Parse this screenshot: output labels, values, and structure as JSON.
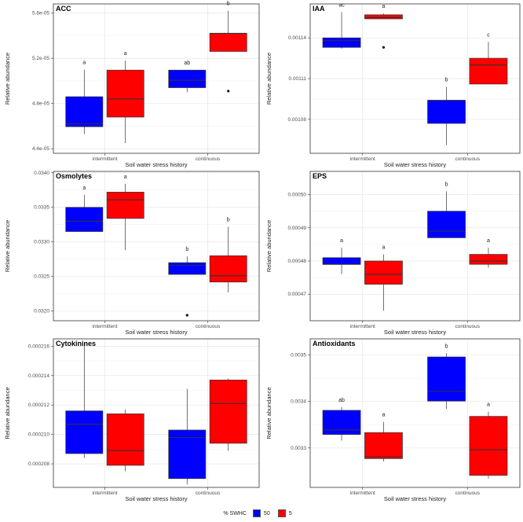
{
  "legend": {
    "title": "% SWHC",
    "items": [
      {
        "label": "50",
        "color": "#0000FF"
      },
      {
        "label": "5",
        "color": "#FF0000"
      }
    ]
  },
  "chart_data": [
    {
      "type": "boxplot",
      "title": "ACC",
      "categories": [
        "intermittent",
        "continuous"
      ],
      "xlabel": "Soil water stress history",
      "ylabel": "Relative abundance",
      "ylim": [
        4.36e-05,
        5.68e-05
      ],
      "ticks": [
        4.4e-05,
        4.8e-05,
        5.2e-05,
        5.6e-05
      ],
      "tick_labels": [
        "4.4e-05",
        "4.8e-05",
        "5.2e-05",
        "5.6e-05"
      ],
      "series": [
        {
          "name": "50",
          "color": "#0000FF",
          "boxes": [
            {
              "lo": 4.53e-05,
              "q1": 4.595e-05,
              "med": 4.62e-05,
              "q3": 4.86e-05,
              "hi": 5.1e-05,
              "outliers": [],
              "letter": "a"
            },
            {
              "lo": 4.9e-05,
              "q1": 4.94e-05,
              "med": 5.005e-05,
              "q3": 5.095e-05,
              "hi": 5.095e-05,
              "outliers": [],
              "letter": "ab"
            }
          ]
        },
        {
          "name": "5",
          "color": "#FF0000",
          "boxes": [
            {
              "lo": 4.45e-05,
              "q1": 4.68e-05,
              "med": 4.84e-05,
              "q3": 5.095e-05,
              "hi": 5.18e-05,
              "outliers": [],
              "letter": "a"
            },
            {
              "lo": 5.26e-05,
              "q1": 5.26e-05,
              "med": 5.42e-05,
              "q3": 5.42e-05,
              "hi": 5.62e-05,
              "outliers": [
                4.91e-05
              ],
              "letter": "b"
            }
          ]
        }
      ]
    },
    {
      "type": "boxplot",
      "title": "IAA",
      "categories": [
        "intermittent",
        "continuous"
      ],
      "xlabel": "Soil water stress history",
      "ylabel": "Relative abundance",
      "ylim": [
        0.001055,
        0.001165
      ],
      "ticks": [
        0.00108,
        0.00111,
        0.00114
      ],
      "tick_labels": [
        "0.00108",
        "0.00111",
        "0.00114"
      ],
      "series": [
        {
          "name": "50",
          "color": "#0000FF",
          "boxes": [
            {
              "lo": 0.001132,
              "q1": 0.001133,
              "med": 0.001138,
              "q3": 0.00114,
              "hi": 0.001159,
              "outliers": [],
              "letter": "ac"
            },
            {
              "lo": 0.001061,
              "q1": 0.001077,
              "med": 0.001094,
              "q3": 0.001094,
              "hi": 0.001104,
              "outliers": [],
              "letter": "b"
            }
          ]
        },
        {
          "name": "5",
          "color": "#FF0000",
          "boxes": [
            {
              "lo": 0.001154,
              "q1": 0.001154,
              "med": 0.001155,
              "q3": 0.001157,
              "hi": 0.001158,
              "outliers": [
                0.001133
              ],
              "letter": "a"
            },
            {
              "lo": 0.001106,
              "q1": 0.001106,
              "med": 0.00112,
              "q3": 0.001125,
              "hi": 0.001137,
              "outliers": [],
              "letter": "c"
            }
          ]
        }
      ]
    },
    {
      "type": "boxplot",
      "title": "Osmolytes",
      "categories": [
        "intermittent",
        "continuous"
      ],
      "xlabel": "Soil water stress history",
      "ylabel": "Relative abundance",
      "ylim": [
        0.03186,
        0.03402
      ],
      "ticks": [
        0.032,
        0.0325,
        0.033,
        0.0335,
        0.034
      ],
      "tick_labels": [
        "0.0320",
        "0.0325",
        "0.0330",
        "0.0335",
        "0.0340"
      ],
      "series": [
        {
          "name": "50",
          "color": "#0000FF",
          "boxes": [
            {
              "lo": 0.03315,
              "q1": 0.03315,
              "med": 0.0333,
              "q3": 0.0335,
              "hi": 0.03368,
              "outliers": [],
              "letter": "a"
            },
            {
              "lo": 0.03253,
              "q1": 0.03253,
              "med": 0.03266,
              "q3": 0.0327,
              "hi": 0.03279,
              "outliers": [
                0.03194
              ],
              "letter": "b"
            }
          ]
        },
        {
          "name": "5",
          "color": "#FF0000",
          "boxes": [
            {
              "lo": 0.03288,
              "q1": 0.03334,
              "med": 0.03361,
              "q3": 0.03372,
              "hi": 0.03384,
              "outliers": [],
              "letter": "a"
            },
            {
              "lo": 0.03227,
              "q1": 0.03242,
              "med": 0.03251,
              "q3": 0.0328,
              "hi": 0.03322,
              "outliers": [],
              "letter": "b"
            }
          ]
        }
      ]
    },
    {
      "type": "boxplot",
      "title": "EPS",
      "categories": [
        "intermittent",
        "continuous"
      ],
      "xlabel": "Soil water stress history",
      "ylabel": "Relative abundance",
      "ylim": [
        0.000462,
        0.000507
      ],
      "ticks": [
        0.00047,
        0.00048,
        0.00049,
        0.0005
      ],
      "tick_labels": [
        "0.00047",
        "0.00048",
        "0.00049",
        "0.00050"
      ],
      "series": [
        {
          "name": "50",
          "color": "#0000FF",
          "boxes": [
            {
              "lo": 0.000476,
              "q1": 0.000479,
              "med": 0.000479,
              "q3": 0.000481,
              "hi": 0.000484,
              "outliers": [],
              "letter": "a"
            },
            {
              "lo": 0.000487,
              "q1": 0.000487,
              "med": 0.000489,
              "q3": 0.000495,
              "hi": 0.000501,
              "outliers": [],
              "letter": "b"
            }
          ]
        },
        {
          "name": "5",
          "color": "#FF0000",
          "boxes": [
            {
              "lo": 0.000465,
              "q1": 0.000473,
              "med": 0.000476,
              "q3": 0.00048,
              "hi": 0.000482,
              "outliers": [],
              "letter": "a"
            },
            {
              "lo": 0.000478,
              "q1": 0.000479,
              "med": 0.00048,
              "q3": 0.000482,
              "hi": 0.000484,
              "outliers": [],
              "letter": "a"
            }
          ]
        }
      ]
    },
    {
      "type": "boxplot",
      "title": "Cytokinines",
      "categories": [
        "intermittent",
        "continuous"
      ],
      "xlabel": "Soil water stress history",
      "ylabel": "Relative abundance",
      "ylim": [
        0.0002064,
        0.0002165
      ],
      "ticks": [
        0.000208,
        0.00021,
        0.000212,
        0.000214,
        0.000216
      ],
      "tick_labels": [
        "0.000208",
        "0.000210",
        "0.000212",
        "0.000214",
        "0.000216"
      ],
      "series": [
        {
          "name": "50",
          "color": "#0000FF",
          "boxes": [
            {
              "lo": 0.0002084,
              "q1": 0.0002087,
              "med": 0.0002107,
              "q3": 0.0002116,
              "hi": 0.0002162,
              "outliers": [],
              "letter": ""
            },
            {
              "lo": 0.0002066,
              "q1": 0.000207,
              "med": 0.0002098,
              "q3": 0.0002103,
              "hi": 0.0002131,
              "outliers": [],
              "letter": ""
            }
          ]
        },
        {
          "name": "5",
          "color": "#FF0000",
          "boxes": [
            {
              "lo": 0.0002075,
              "q1": 0.0002079,
              "med": 0.0002089,
              "q3": 0.0002114,
              "hi": 0.0002117,
              "outliers": [],
              "letter": ""
            },
            {
              "lo": 0.0002089,
              "q1": 0.0002094,
              "med": 0.0002121,
              "q3": 0.0002137,
              "hi": 0.0002138,
              "outliers": [],
              "letter": ""
            }
          ]
        }
      ]
    },
    {
      "type": "boxplot",
      "title": "Antioxidants",
      "categories": [
        "intermittent",
        "continuous"
      ],
      "xlabel": "Soil water stress history",
      "ylabel": "Relative abundance",
      "ylim": [
        0.003215,
        0.003535
      ],
      "ticks": [
        0.0033,
        0.0034,
        0.0035
      ],
      "tick_labels": [
        "0.0033",
        "0.0034",
        "0.0035"
      ],
      "series": [
        {
          "name": "50",
          "color": "#0000FF",
          "boxes": [
            {
              "lo": 0.003316,
              "q1": 0.003329,
              "med": 0.003339,
              "q3": 0.003381,
              "hi": 0.003388,
              "outliers": [],
              "letter": "ab"
            },
            {
              "lo": 0.003384,
              "q1": 0.003401,
              "med": 0.003422,
              "q3": 0.003496,
              "hi": 0.003504,
              "outliers": [],
              "letter": "b"
            }
          ]
        },
        {
          "name": "5",
          "color": "#FF0000",
          "boxes": [
            {
              "lo": 0.003271,
              "q1": 0.003277,
              "med": 0.003281,
              "q3": 0.003333,
              "hi": 0.003356,
              "outliers": [],
              "letter": "a"
            },
            {
              "lo": 0.003234,
              "q1": 0.003241,
              "med": 0.003296,
              "q3": 0.003368,
              "hi": 0.003378,
              "outliers": [],
              "letter": "a"
            }
          ]
        }
      ]
    }
  ]
}
